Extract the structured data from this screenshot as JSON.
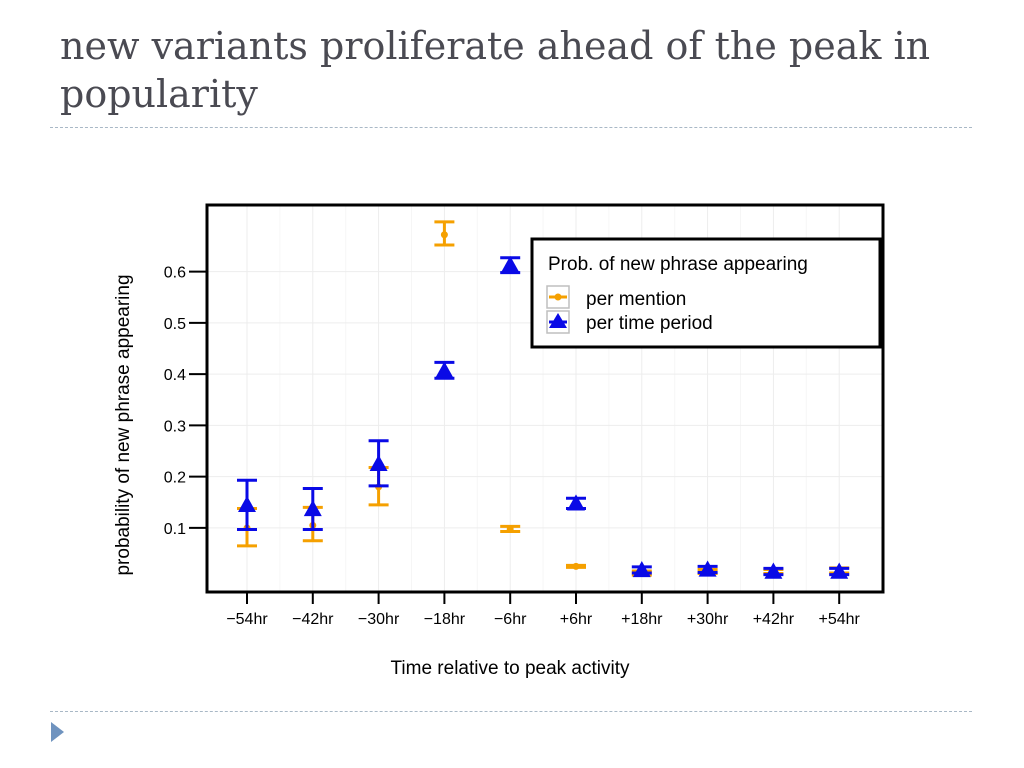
{
  "slide": {
    "title": "new variants proliferate ahead of the peak in popularity"
  },
  "colors": {
    "per_mention": "#f5a000",
    "per_time_period": "#0a0ae6"
  },
  "icons": {
    "next": "triangle-right-icon"
  },
  "chart_data": {
    "type": "scatter",
    "title": "",
    "xlabel": "Time relative to peak activity",
    "ylabel": "probability of new phrase appearing",
    "categories": [
      "−54hr",
      "−42hr",
      "−30hr",
      "−18hr",
      "−6hr",
      "+6hr",
      "+18hr",
      "+30hr",
      "+42hr",
      "+54hr"
    ],
    "ylim": [
      -0.025,
      0.73
    ],
    "yticks": [
      0.1,
      0.2,
      0.3,
      0.4,
      0.5,
      0.6
    ],
    "ytick_labels": [
      "0.1",
      "0.2",
      "0.3",
      "0.4",
      "0.5",
      "0.6"
    ],
    "grid": true,
    "legend": {
      "title": "Prob. of new phrase appearing",
      "position": "top-right"
    },
    "series": [
      {
        "name": "per mention",
        "marker": "dot",
        "color": "#f5a000",
        "values": [
          0.1,
          0.105,
          0.18,
          0.672,
          0.098,
          0.025,
          0.012,
          0.015,
          0.015,
          0.017
        ],
        "lower": [
          0.065,
          0.075,
          0.145,
          0.652,
          0.093,
          0.023,
          0.008,
          0.011,
          0.011,
          0.012
        ],
        "upper": [
          0.138,
          0.14,
          0.218,
          0.697,
          0.103,
          0.027,
          0.016,
          0.019,
          0.019,
          0.022
        ]
      },
      {
        "name": "per time period",
        "marker": "triangle",
        "color": "#0a0ae6",
        "values": [
          0.145,
          0.137,
          0.225,
          0.407,
          0.613,
          0.148,
          0.018,
          0.019,
          0.015,
          0.015
        ],
        "lower": [
          0.097,
          0.097,
          0.182,
          0.392,
          0.598,
          0.138,
          0.012,
          0.013,
          0.009,
          0.009
        ],
        "upper": [
          0.193,
          0.177,
          0.27,
          0.423,
          0.627,
          0.158,
          0.024,
          0.025,
          0.021,
          0.021
        ]
      }
    ]
  }
}
